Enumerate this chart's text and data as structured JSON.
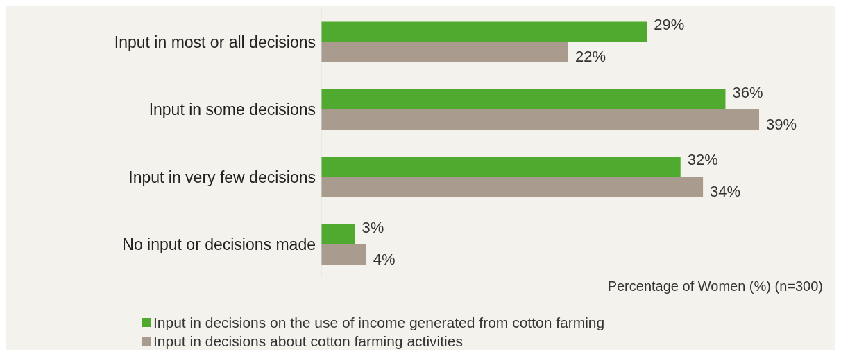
{
  "chart_data": {
    "type": "bar",
    "orientation": "horizontal",
    "categories": [
      "Input in most or all decisions",
      "Input in some decisions",
      "Input in very few decisions",
      "No input or decisions made"
    ],
    "series": [
      {
        "name": "Input in decisions on the use of income generated from cotton farming",
        "color": "#4faa2f",
        "values": [
          29,
          36,
          32,
          3
        ],
        "value_labels": [
          "29%",
          "36%",
          "32%",
          "3%"
        ]
      },
      {
        "name": "Input in decisions about cotton farming activities",
        "color": "#aa9b8f",
        "values": [
          22,
          39,
          34,
          4
        ],
        "value_labels": [
          "22%",
          "39%",
          "34%",
          "4%"
        ]
      }
    ],
    "xlabel": "Percentage of Women (%) (n=300)",
    "tick_labels": "y",
    "grid": false,
    "legend": "bottom"
  }
}
